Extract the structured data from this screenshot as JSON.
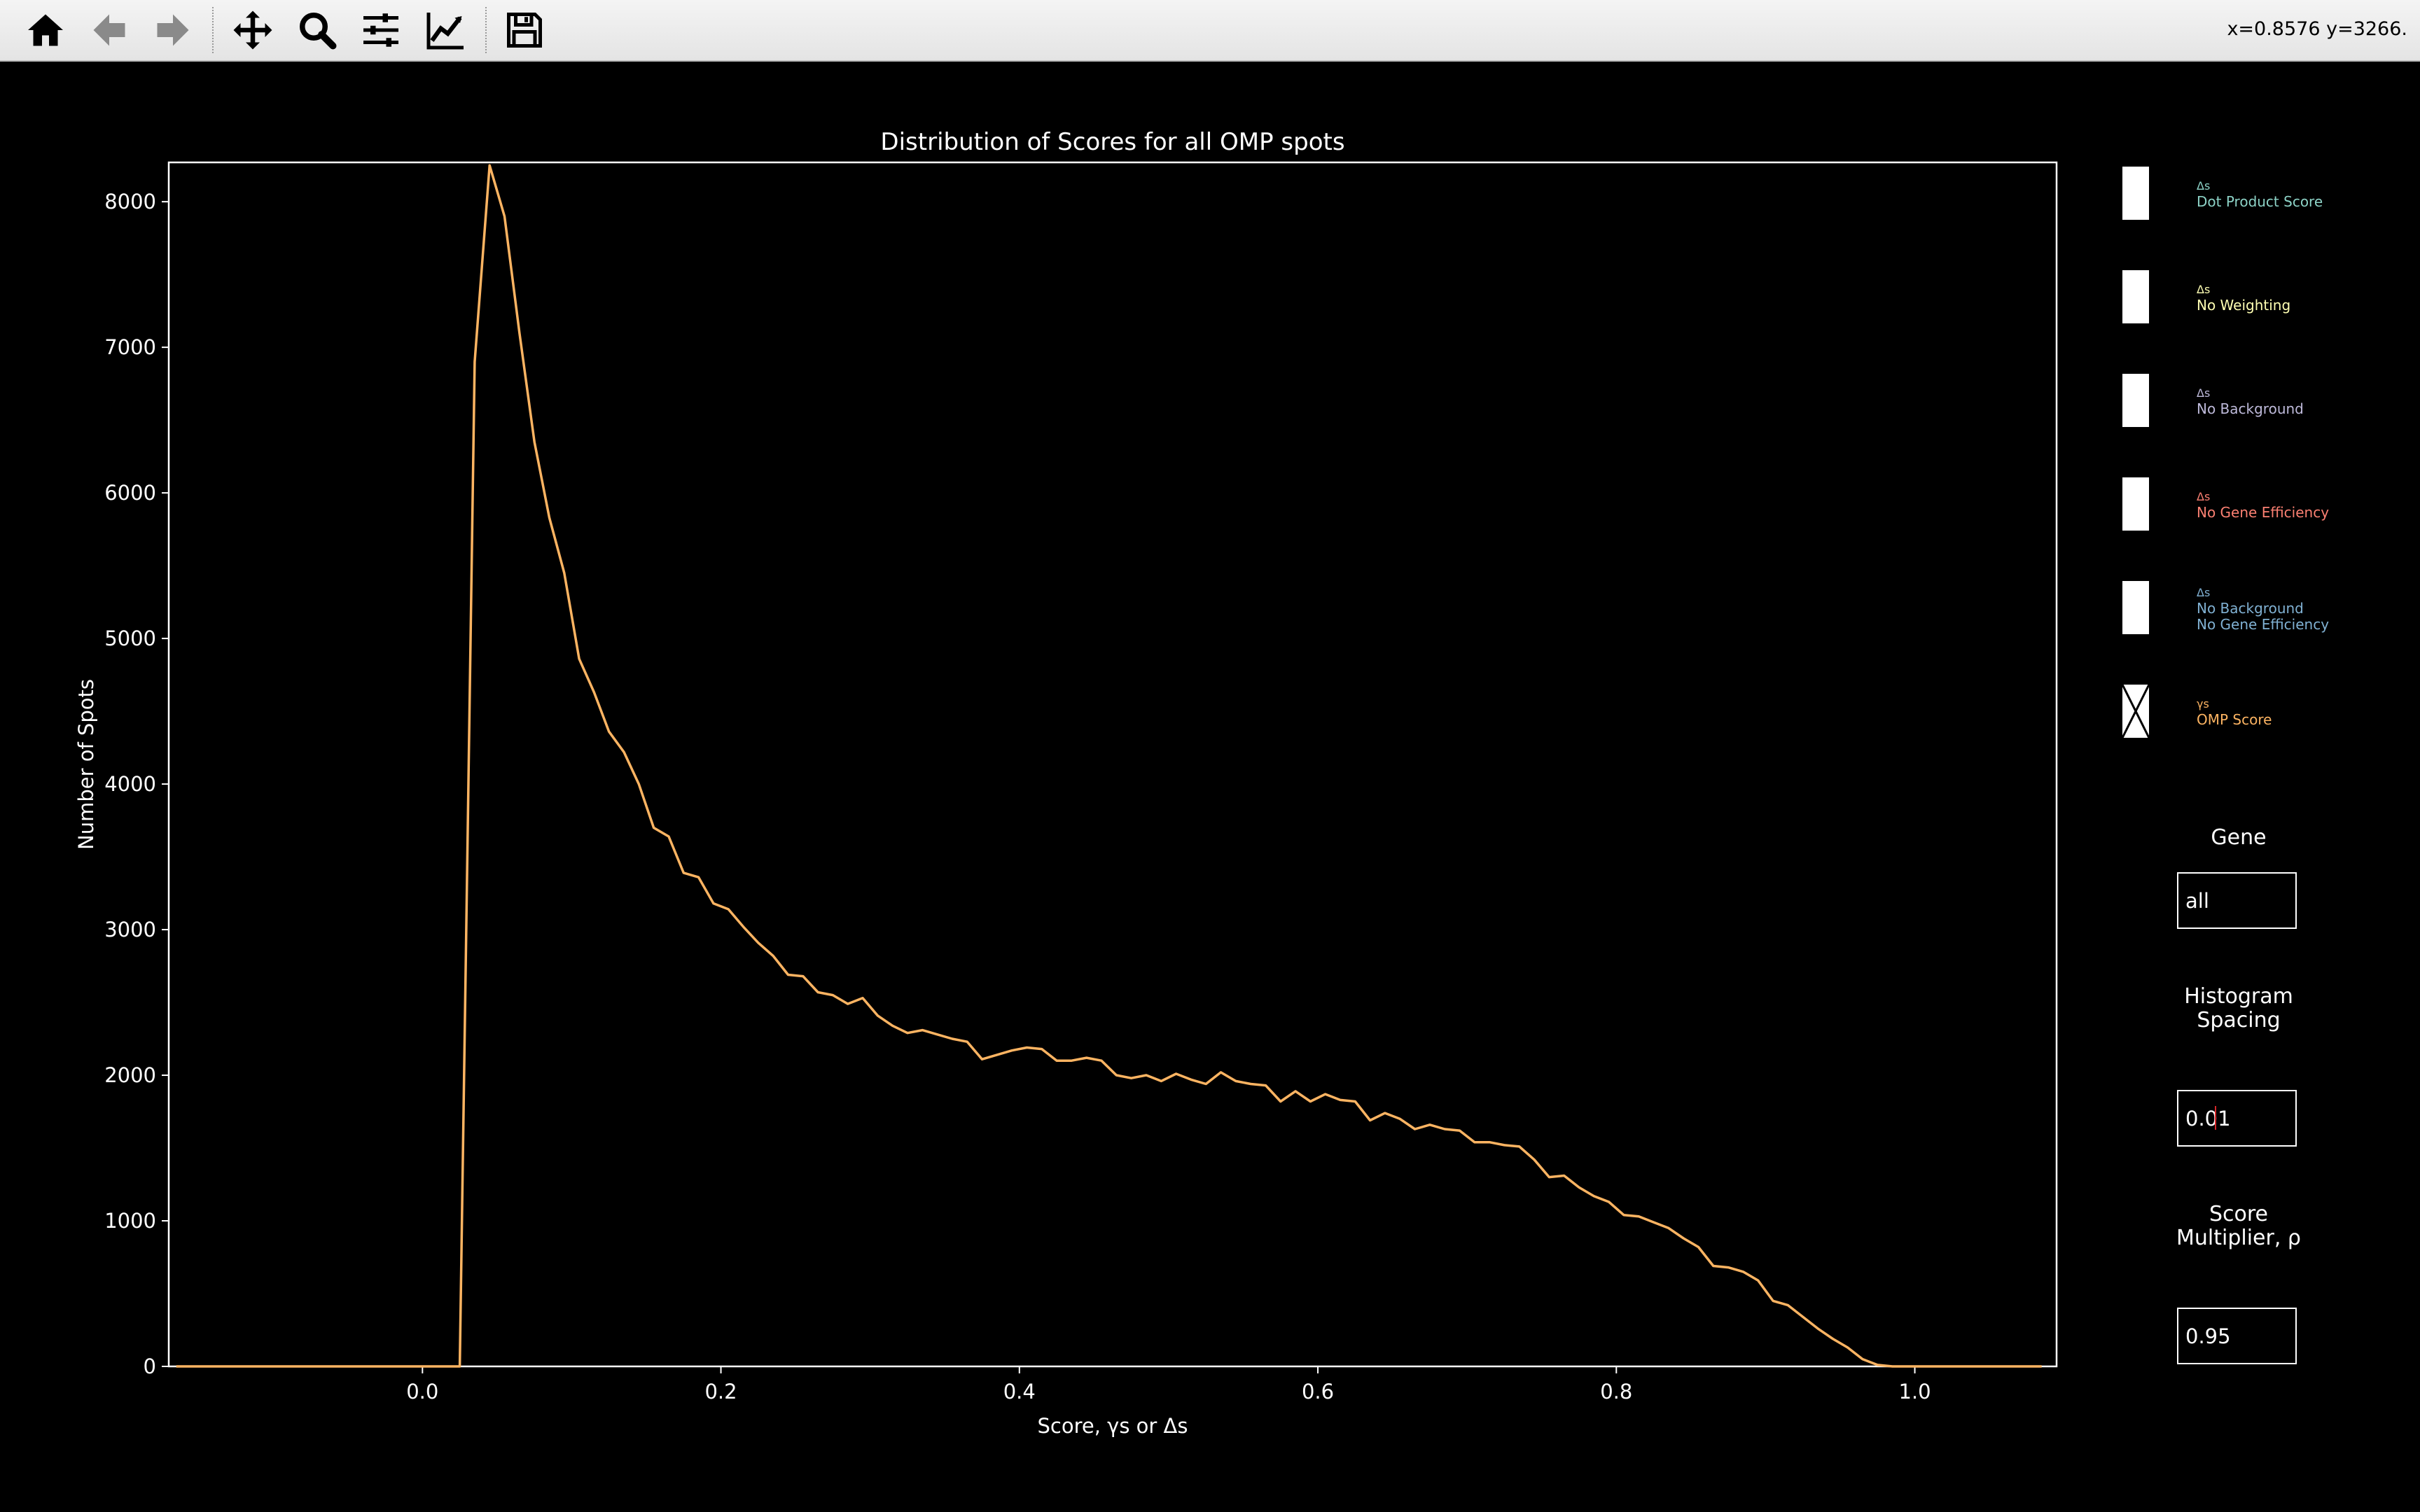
{
  "toolbar": {
    "buttons": [
      {
        "name": "home-icon",
        "label": "Home"
      },
      {
        "name": "back-icon",
        "label": "Back"
      },
      {
        "name": "forward-icon",
        "label": "Forward"
      },
      {
        "name": "pan-icon",
        "label": "Pan"
      },
      {
        "name": "zoom-icon",
        "label": "Zoom"
      },
      {
        "name": "subplots-icon",
        "label": "Configure subplots"
      },
      {
        "name": "edit-axis-icon",
        "label": "Edit axis"
      },
      {
        "name": "save-icon",
        "label": "Save"
      }
    ],
    "coords": "x=0.8576 y=3266."
  },
  "colors": {
    "background": "#000000",
    "line": "#fdb462",
    "dot_product": "#8dd3c7",
    "no_weighting": "#ffffb3",
    "no_background": "#bebada",
    "no_gene_efficiency": "#fb8072",
    "no_bg_no_ge": "#80b1d3",
    "omp": "#fdb462"
  },
  "checkboxes": [
    {
      "symbol": "Δs",
      "lines": [
        "Dot Product Score"
      ],
      "checked": false,
      "color": "#8dd3c7"
    },
    {
      "symbol": "Δs",
      "lines": [
        "No Weighting"
      ],
      "checked": false,
      "color": "#ffffb3"
    },
    {
      "symbol": "Δs",
      "lines": [
        "No Background"
      ],
      "checked": false,
      "color": "#bebada"
    },
    {
      "symbol": "Δs",
      "lines": [
        "No Gene Efficiency"
      ],
      "checked": false,
      "color": "#fb8072"
    },
    {
      "symbol": "Δs",
      "lines": [
        "No Background",
        "No Gene Efficiency"
      ],
      "checked": false,
      "color": "#80b1d3"
    },
    {
      "symbol": "γs",
      "lines": [
        "OMP Score"
      ],
      "checked": true,
      "color": "#fdb462"
    }
  ],
  "controls": {
    "gene_title": "Gene",
    "gene_value": "all",
    "hist_title_1": "Histogram",
    "hist_title_2": "Spacing",
    "hist_value": "0.01",
    "mult_title_1": "Score",
    "mult_title_2": "Multiplier, ρ",
    "mult_value": "0.95"
  },
  "chart_data": {
    "type": "line",
    "title": "Distribution of Scores for all OMP spots",
    "xlabel": "Score, γs or Δs",
    "ylabel": "Number of Spots",
    "xlim": [
      -0.17,
      1.095
    ],
    "ylim": [
      0,
      8270
    ],
    "xticks": [
      0.0,
      0.2,
      0.4,
      0.6,
      0.8,
      1.0
    ],
    "xtick_labels": [
      "0.0",
      "0.2",
      "0.4",
      "0.6",
      "0.8",
      "1.0"
    ],
    "yticks": [
      0,
      1000,
      2000,
      3000,
      4000,
      5000,
      6000,
      7000,
      8000
    ],
    "ytick_labels": [
      "0",
      "1000",
      "2000",
      "3000",
      "4000",
      "5000",
      "6000",
      "7000",
      "8000"
    ],
    "grid": false,
    "series": [
      {
        "color": "#fdb462",
        "x": [
          -0.165,
          0.025,
          0.035,
          0.045,
          0.055,
          0.065,
          0.075,
          0.085,
          0.095,
          0.105,
          0.115,
          0.125,
          0.135,
          0.145,
          0.155,
          0.165,
          0.175,
          0.185,
          0.195,
          0.205,
          0.215,
          0.225,
          0.235,
          0.245,
          0.255,
          0.265,
          0.275,
          0.285,
          0.295,
          0.305,
          0.315,
          0.325,
          0.335,
          0.345,
          0.355,
          0.365,
          0.375,
          0.385,
          0.395,
          0.405,
          0.415,
          0.425,
          0.435,
          0.445,
          0.455,
          0.465,
          0.475,
          0.485,
          0.495,
          0.505,
          0.515,
          0.525,
          0.535,
          0.545,
          0.555,
          0.565,
          0.575,
          0.585,
          0.595,
          0.605,
          0.615,
          0.625,
          0.635,
          0.645,
          0.655,
          0.665,
          0.675,
          0.685,
          0.695,
          0.705,
          0.715,
          0.725,
          0.735,
          0.745,
          0.755,
          0.765,
          0.775,
          0.785,
          0.795,
          0.805,
          0.815,
          0.825,
          0.835,
          0.845,
          0.855,
          0.865,
          0.875,
          0.885,
          0.895,
          0.905,
          0.915,
          0.925,
          0.935,
          0.945,
          0.955,
          0.965,
          0.975,
          0.985,
          0.995,
          1.005,
          1.015,
          1.085
        ],
        "y": [
          0,
          0,
          6900,
          8250,
          7900,
          7100,
          6350,
          5830,
          5450,
          4860,
          4630,
          4360,
          4220,
          4000,
          3700,
          3640,
          3390,
          3360,
          3180,
          3140,
          3020,
          2910,
          2820,
          2690,
          2680,
          2570,
          2550,
          2490,
          2530,
          2410,
          2340,
          2290,
          2310,
          2280,
          2250,
          2230,
          2110,
          2140,
          2170,
          2190,
          2180,
          2100,
          2100,
          2120,
          2100,
          2000,
          1980,
          2000,
          1960,
          2010,
          1970,
          1940,
          2020,
          1960,
          1940,
          1930,
          1820,
          1890,
          1820,
          1870,
          1830,
          1820,
          1690,
          1740,
          1700,
          1630,
          1660,
          1630,
          1620,
          1540,
          1540,
          1520,
          1510,
          1420,
          1300,
          1310,
          1230,
          1170,
          1130,
          1040,
          1030,
          990,
          950,
          880,
          820,
          690,
          680,
          650,
          590,
          450,
          420,
          340,
          260,
          190,
          130,
          50,
          10,
          0,
          0,
          0,
          0,
          0
        ]
      }
    ]
  }
}
